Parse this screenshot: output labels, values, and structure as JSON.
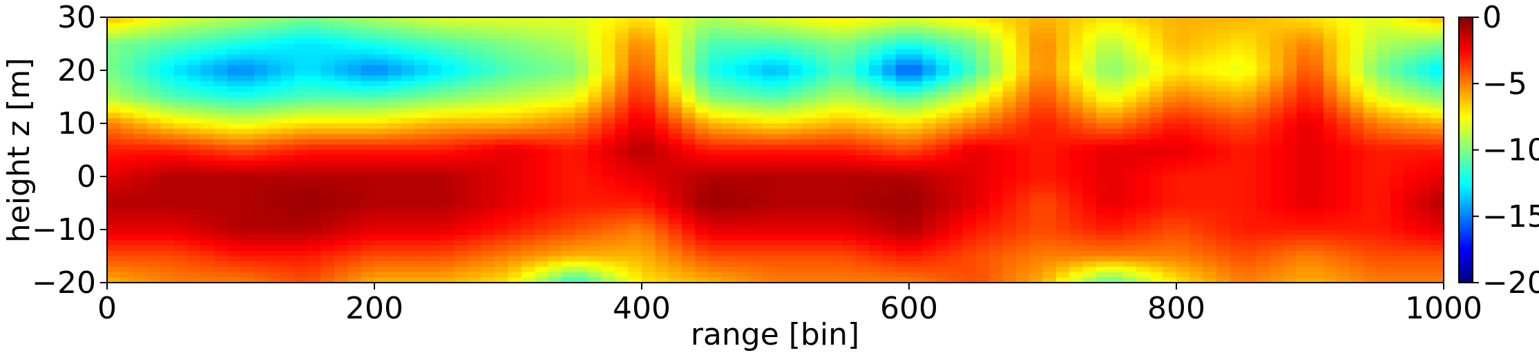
{
  "chart_data": {
    "type": "heatmap",
    "title": "",
    "xlabel": "range [bin]",
    "ylabel": "height z [m]",
    "xlim": [
      0,
      1000
    ],
    "ylim": [
      -20,
      30
    ],
    "xticks": [
      0,
      200,
      400,
      600,
      800,
      1000
    ],
    "yticks": [
      -20,
      -10,
      0,
      10,
      20,
      30
    ],
    "colorbar": {
      "colormap": "jet",
      "range": [
        -20,
        0
      ],
      "ticks": [
        0,
        -5,
        -10,
        -15,
        -20
      ]
    },
    "x": [
      0,
      50,
      100,
      150,
      200,
      250,
      300,
      350,
      400,
      450,
      500,
      550,
      600,
      650,
      700,
      750,
      800,
      850,
      900,
      950,
      1000
    ],
    "y": [
      30,
      25,
      20,
      15,
      10,
      5,
      0,
      -5,
      -10,
      -15,
      -20
    ],
    "z": [
      [
        -6,
        -8,
        -9,
        -10,
        -9,
        -8,
        -8,
        -8,
        -7,
        -9,
        -8,
        -7,
        -8,
        -7,
        -6,
        -7,
        -6,
        -6,
        -7,
        -8,
        -6
      ],
      [
        -10,
        -11,
        -12,
        -13,
        -12,
        -11,
        -10,
        -9,
        -5,
        -11,
        -11,
        -10,
        -12,
        -10,
        -5,
        -9,
        -6,
        -7,
        -5,
        -9,
        -10
      ],
      [
        -10,
        -13,
        -15,
        -13,
        -15,
        -13,
        -11,
        -10,
        -4,
        -12,
        -14,
        -11,
        -16,
        -11,
        -5,
        -10,
        -7,
        -8,
        -4,
        -10,
        -13
      ],
      [
        -9,
        -11,
        -12,
        -11,
        -11,
        -10,
        -9,
        -8,
        -3,
        -10,
        -11,
        -9,
        -11,
        -8,
        -4,
        -8,
        -5,
        -6,
        -3,
        -8,
        -10
      ],
      [
        -5,
        -7,
        -8,
        -7,
        -7,
        -6,
        -6,
        -5,
        -2,
        -6,
        -7,
        -6,
        -7,
        -5,
        -3,
        -5,
        -3,
        -4,
        -2,
        -5,
        -6
      ],
      [
        -3,
        -3,
        -4,
        -3,
        -3,
        -3,
        -2,
        -3,
        -1,
        -3,
        -3,
        -3,
        -4,
        -2,
        -3,
        -2,
        -2,
        -3,
        -2,
        -3,
        -3
      ],
      [
        -2,
        -1,
        -1,
        -1,
        -1,
        -1,
        -2,
        -3,
        -2,
        -1,
        -1,
        -1,
        -1,
        -2,
        -3,
        -2,
        -3,
        -3,
        -2,
        -3,
        -2
      ],
      [
        -1,
        -1,
        -1,
        -0.5,
        -1,
        -1,
        -2,
        -3,
        -3,
        -0.5,
        -1,
        -1,
        -0.5,
        -2,
        -4,
        -2,
        -3,
        -3,
        -2,
        -3,
        -1
      ],
      [
        -2,
        -2,
        -1,
        -1,
        -2,
        -2,
        -3,
        -4,
        -5,
        -2,
        -2,
        -2,
        -1,
        -3,
        -4,
        -3,
        -4,
        -3,
        -3,
        -3,
        -2
      ],
      [
        -4,
        -4,
        -3,
        -3,
        -4,
        -4,
        -5,
        -6,
        -6,
        -4,
        -4,
        -4,
        -3,
        -4,
        -5,
        -5,
        -5,
        -4,
        -5,
        -4,
        -4
      ],
      [
        -6,
        -5,
        -5,
        -4,
        -6,
        -6,
        -7,
        -12,
        -7,
        -6,
        -5,
        -5,
        -5,
        -4,
        -6,
        -11,
        -7,
        -5,
        -6,
        -5,
        -5
      ]
    ]
  }
}
